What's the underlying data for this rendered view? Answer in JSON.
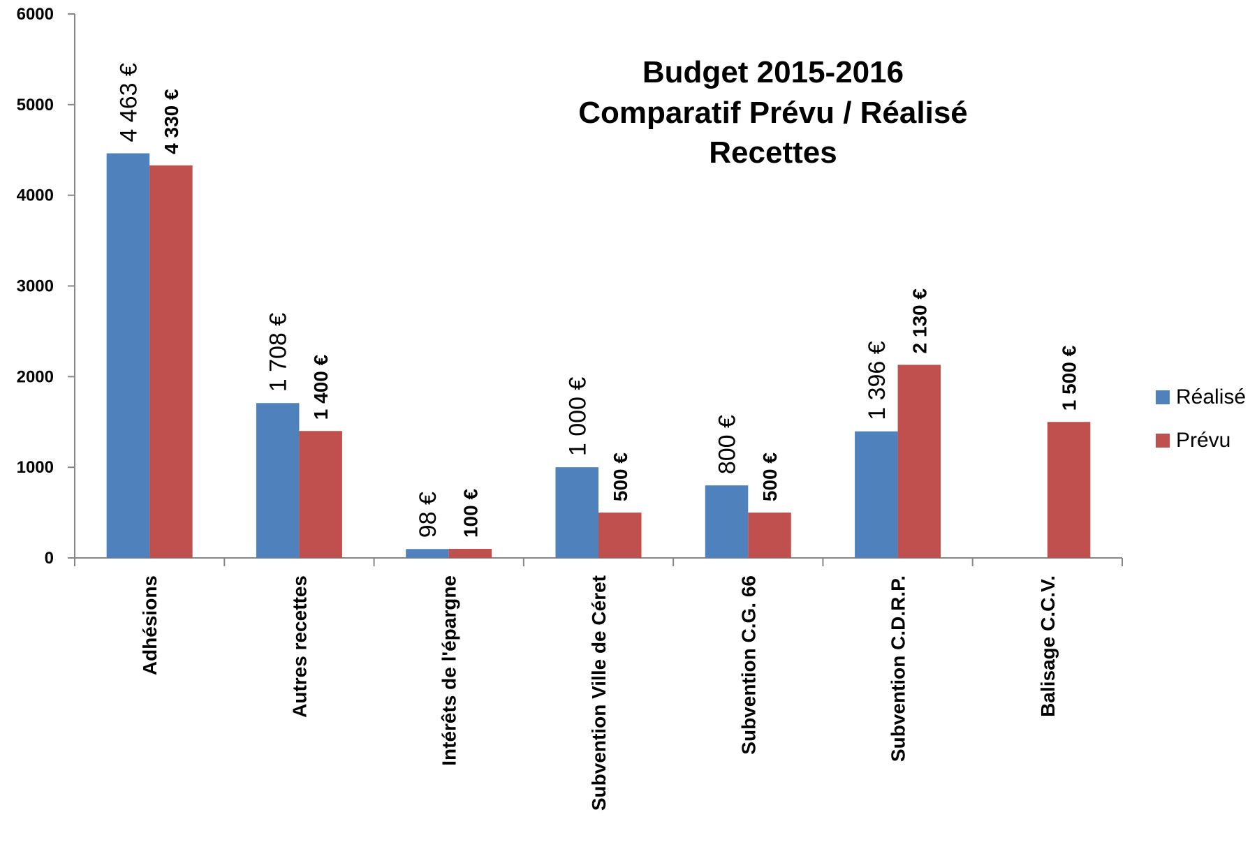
{
  "chart_data": {
    "type": "bar",
    "title_lines": [
      "Budget 2015-2016",
      "Comparatif Prévu / Réalisé",
      "Recettes"
    ],
    "categories": [
      "Adhésions",
      "Autres recettes",
      "Intérêts de l'épargne",
      "Subvention Ville de Céret",
      "Subvention C.G. 66",
      "Subvention C.D.R.P.",
      "Balisage C.C.V."
    ],
    "series": [
      {
        "name": "Réalisé",
        "color": "#4F81BD",
        "values": [
          4463,
          1708,
          98,
          1000,
          800,
          1396,
          null
        ],
        "labels": [
          "4 463 €",
          "1 708 €",
          "98 €",
          "1 000 €",
          "800 €",
          "1 396 €",
          ""
        ]
      },
      {
        "name": "Prévu",
        "color": "#C0504D",
        "values": [
          4330,
          1400,
          100,
          500,
          500,
          2130,
          1500
        ],
        "labels": [
          "4 330 €",
          "1 400 €",
          "100 €",
          "500 €",
          "500 €",
          "2 130 €",
          "1 500 €"
        ]
      }
    ],
    "yticks": [
      "0",
      "1000",
      "2000",
      "3000",
      "4000",
      "5000",
      "6000"
    ],
    "ylim": [
      0,
      6000
    ],
    "xlabel": "",
    "ylabel": "",
    "grid": false,
    "legend_position": "right"
  }
}
